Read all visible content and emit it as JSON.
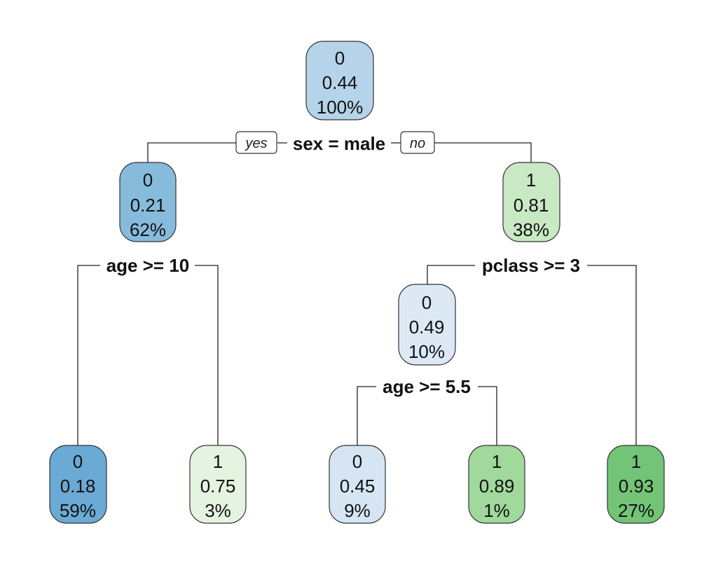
{
  "branch_labels": {
    "yes": "yes",
    "no": "no"
  },
  "splits": {
    "root": "sex = male",
    "male": "age >= 10",
    "female": "pclass >= 3",
    "female_pclass3": "age >= 5.5"
  },
  "nodes": {
    "root": {
      "class": "0",
      "prob": "0.44",
      "pct": "100%",
      "color": "#b5d4e9"
    },
    "male": {
      "class": "0",
      "prob": "0.21",
      "pct": "62%",
      "color": "#86bbdc"
    },
    "female": {
      "class": "1",
      "prob": "0.81",
      "pct": "38%",
      "color": "#c9e8c4"
    },
    "female_pclass3": {
      "class": "0",
      "prob": "0.49",
      "pct": "10%",
      "color": "#dce9f5"
    },
    "male_adult": {
      "class": "0",
      "prob": "0.18",
      "pct": "59%",
      "color": "#6aaad4"
    },
    "male_child": {
      "class": "1",
      "prob": "0.75",
      "pct": "3%",
      "color": "#e5f4e1"
    },
    "fp3_older": {
      "class": "0",
      "prob": "0.45",
      "pct": "9%",
      "color": "#d5e5f3"
    },
    "fp3_young": {
      "class": "1",
      "prob": "0.89",
      "pct": "1%",
      "color": "#a1d89b"
    },
    "female_upper": {
      "class": "1",
      "prob": "0.93",
      "pct": "27%",
      "color": "#73c477"
    }
  }
}
